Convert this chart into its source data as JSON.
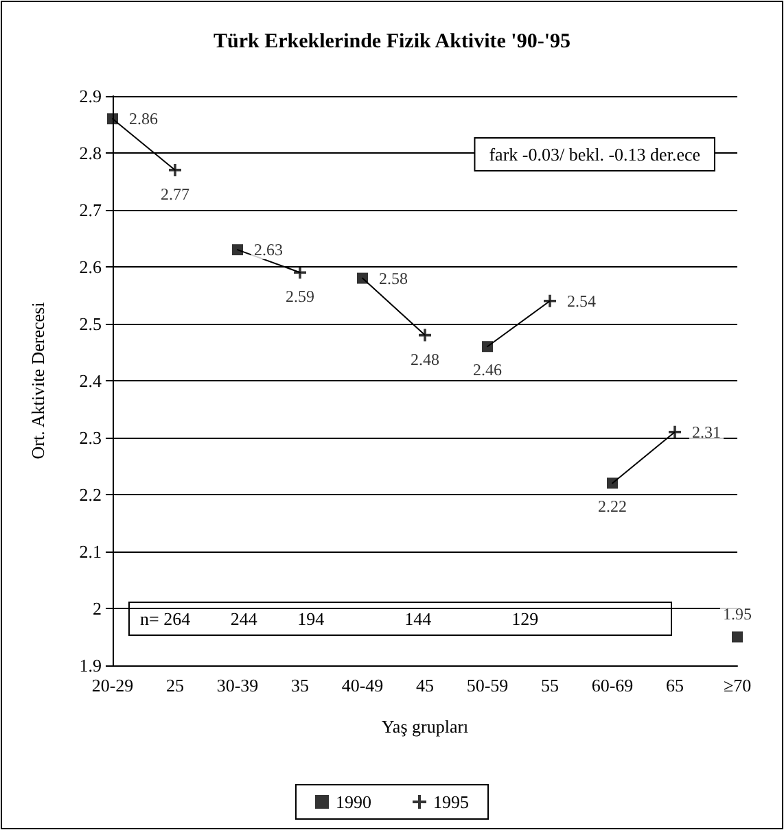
{
  "chart_data": {
    "type": "scatter",
    "title": "Türk Erkeklerinde Fizik Aktivite '90-'95",
    "xlabel": "Yaş grupları",
    "ylabel": "Ort. Aktivite Derecesi",
    "categories": [
      "20-29",
      "25",
      "30-39",
      "35",
      "40-49",
      "45",
      "50-59",
      "55",
      "60-69",
      "65",
      "≥70"
    ],
    "series": [
      {
        "name": "1990",
        "marker": "square",
        "color": "#000000",
        "values": [
          2.86,
          null,
          2.63,
          null,
          2.58,
          null,
          2.46,
          null,
          2.22,
          null,
          1.95
        ],
        "value_labels": [
          "2.86",
          null,
          "2.63",
          null,
          "2.58",
          null,
          "2.46",
          null,
          "2.22",
          null,
          "1.95"
        ]
      },
      {
        "name": "1995",
        "marker": "cross",
        "color": "#000000",
        "values": [
          null,
          2.77,
          null,
          2.59,
          null,
          2.48,
          null,
          2.54,
          null,
          2.31,
          null
        ],
        "value_labels": [
          null,
          "2.77",
          null,
          "2.59",
          null,
          "2.48",
          null,
          "2.54",
          null,
          "2.31",
          null
        ]
      },
      {
        "type": "line",
        "marker": "none",
        "color": "#000000",
        "values": [
          2.86,
          2.77,
          null,
          null,
          null,
          null,
          null,
          null,
          null,
          null,
          null
        ]
      },
      {
        "type": "line",
        "marker": "none",
        "color": "#000000",
        "values": [
          null,
          null,
          2.63,
          2.59,
          null,
          null,
          null,
          null,
          null,
          null,
          null
        ]
      },
      {
        "type": "line",
        "marker": "none",
        "color": "#000000",
        "values": [
          null,
          null,
          null,
          null,
          2.58,
          2.48,
          null,
          null,
          null,
          null,
          null
        ]
      },
      {
        "type": "line",
        "marker": "none",
        "color": "#000000",
        "values": [
          null,
          null,
          null,
          null,
          null,
          null,
          2.46,
          2.54,
          null,
          null,
          null
        ]
      },
      {
        "type": "line",
        "marker": "none",
        "color": "#000000",
        "values": [
          null,
          null,
          null,
          null,
          null,
          null,
          null,
          null,
          2.22,
          2.31,
          null
        ]
      }
    ],
    "ylim": [
      1.9,
      2.9
    ],
    "yticks": [
      1.9,
      2,
      2.1,
      2.2,
      2.3,
      2.4,
      2.5,
      2.6,
      2.7,
      2.8,
      2.9
    ],
    "grid": "y",
    "legend": "bottom",
    "annotations": [
      "fark -0.03/ bekl. -0.13 der.ece",
      "n= 264         244         194                  144                  129"
    ]
  }
}
